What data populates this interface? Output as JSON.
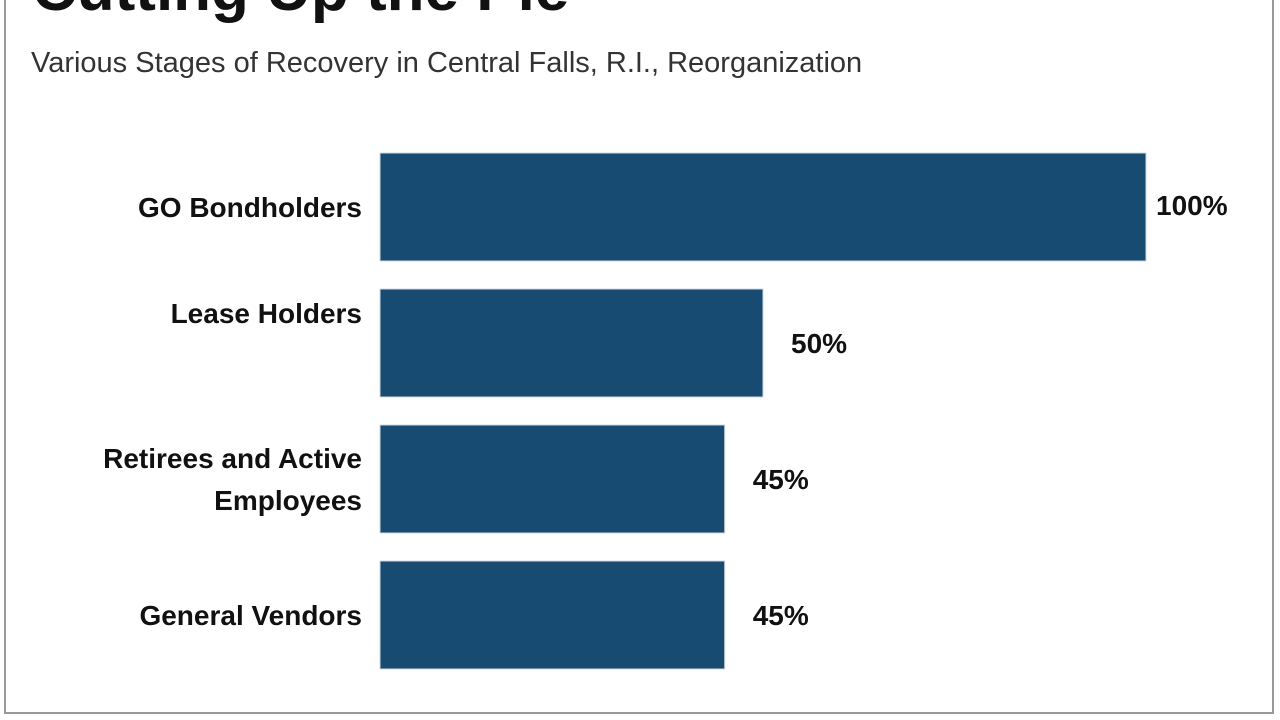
{
  "chart_data": {
    "type": "bar",
    "orientation": "horizontal",
    "title": "Cutting Up the Pie",
    "subtitle": "Various Stages of Recovery in Central Falls, R.I., Reorganization",
    "xlabel": "",
    "ylabel": "",
    "xlim": [
      0,
      100
    ],
    "grid": false,
    "categories": [
      [
        "GO Bondholders"
      ],
      [
        "Lease Holders"
      ],
      [
        "Retirees and Active",
        "Employees"
      ],
      [
        "General Vendors"
      ]
    ],
    "values": [
      100,
      50,
      45,
      45
    ],
    "value_labels": [
      "100%",
      "50%",
      "45%",
      "45%"
    ],
    "bar_color": "#174b72"
  }
}
